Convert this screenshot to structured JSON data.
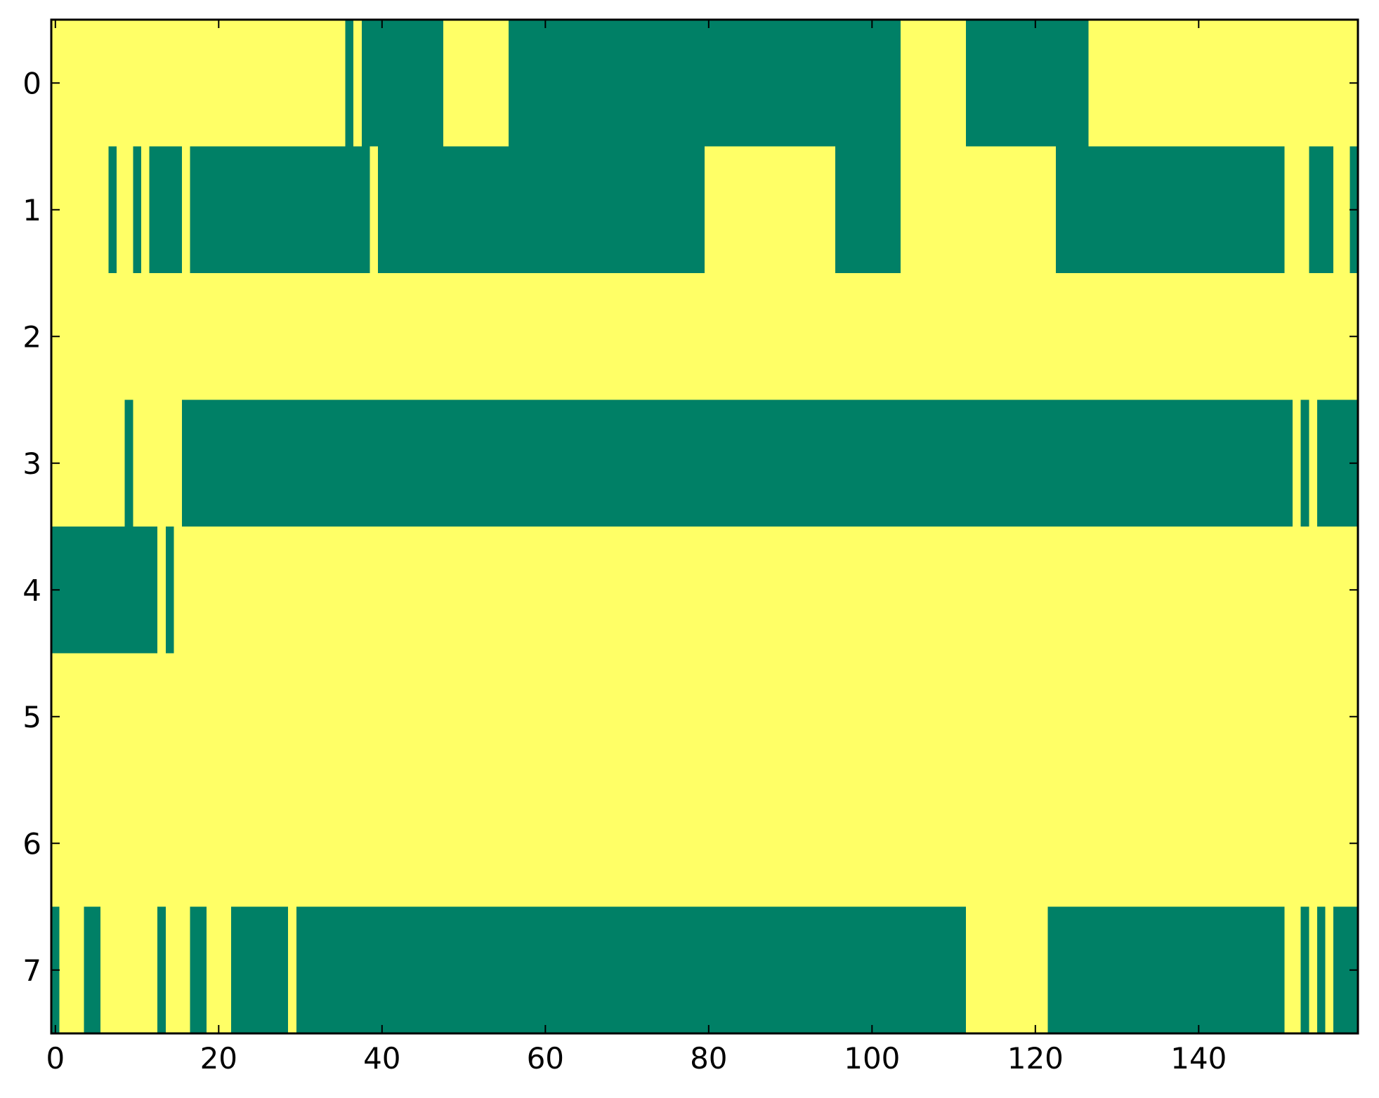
{
  "chart_data": {
    "type": "heatmap",
    "title": "",
    "xlabel": "",
    "ylabel": "",
    "xlim": [
      -0.5,
      159.5
    ],
    "ylim": [
      7.5,
      -0.5
    ],
    "x_ticks": [
      0,
      20,
      40,
      60,
      80,
      100,
      120,
      140
    ],
    "x_tick_labels": [
      "0",
      "20",
      "40",
      "60",
      "80",
      "100",
      "120",
      "140"
    ],
    "y_ticks": [
      0,
      1,
      2,
      3,
      4,
      5,
      6,
      7
    ],
    "y_tick_labels": [
      "0",
      "1",
      "2",
      "3",
      "4",
      "5",
      "6",
      "7"
    ],
    "grid": false,
    "legend": "none",
    "colors": {
      "low": "#ffff66",
      "high": "#008066"
    },
    "num_columns": 160,
    "rows": [
      {
        "row": 0,
        "high_ranges": [
          [
            36,
            36
          ],
          [
            38,
            47
          ],
          [
            56,
            103
          ],
          [
            112,
            126
          ]
        ]
      },
      {
        "row": 1,
        "high_ranges": [
          [
            7,
            7
          ],
          [
            10,
            10
          ],
          [
            12,
            15
          ],
          [
            17,
            38
          ],
          [
            40,
            79
          ],
          [
            96,
            103
          ],
          [
            123,
            150
          ],
          [
            154,
            156
          ],
          [
            159,
            159
          ]
        ]
      },
      {
        "row": 2,
        "high_ranges": []
      },
      {
        "row": 3,
        "high_ranges": [
          [
            9,
            9
          ],
          [
            16,
            151
          ],
          [
            153,
            153
          ],
          [
            155,
            159
          ]
        ]
      },
      {
        "row": 4,
        "high_ranges": [
          [
            0,
            12
          ],
          [
            14,
            14
          ]
        ]
      },
      {
        "row": 5,
        "high_ranges": []
      },
      {
        "row": 6,
        "high_ranges": []
      },
      {
        "row": 7,
        "high_ranges": [
          [
            0,
            0
          ],
          [
            4,
            5
          ],
          [
            13,
            13
          ],
          [
            17,
            18
          ],
          [
            22,
            28
          ],
          [
            30,
            111
          ],
          [
            122,
            150
          ],
          [
            153,
            153
          ],
          [
            155,
            155
          ],
          [
            157,
            159
          ]
        ]
      }
    ]
  }
}
